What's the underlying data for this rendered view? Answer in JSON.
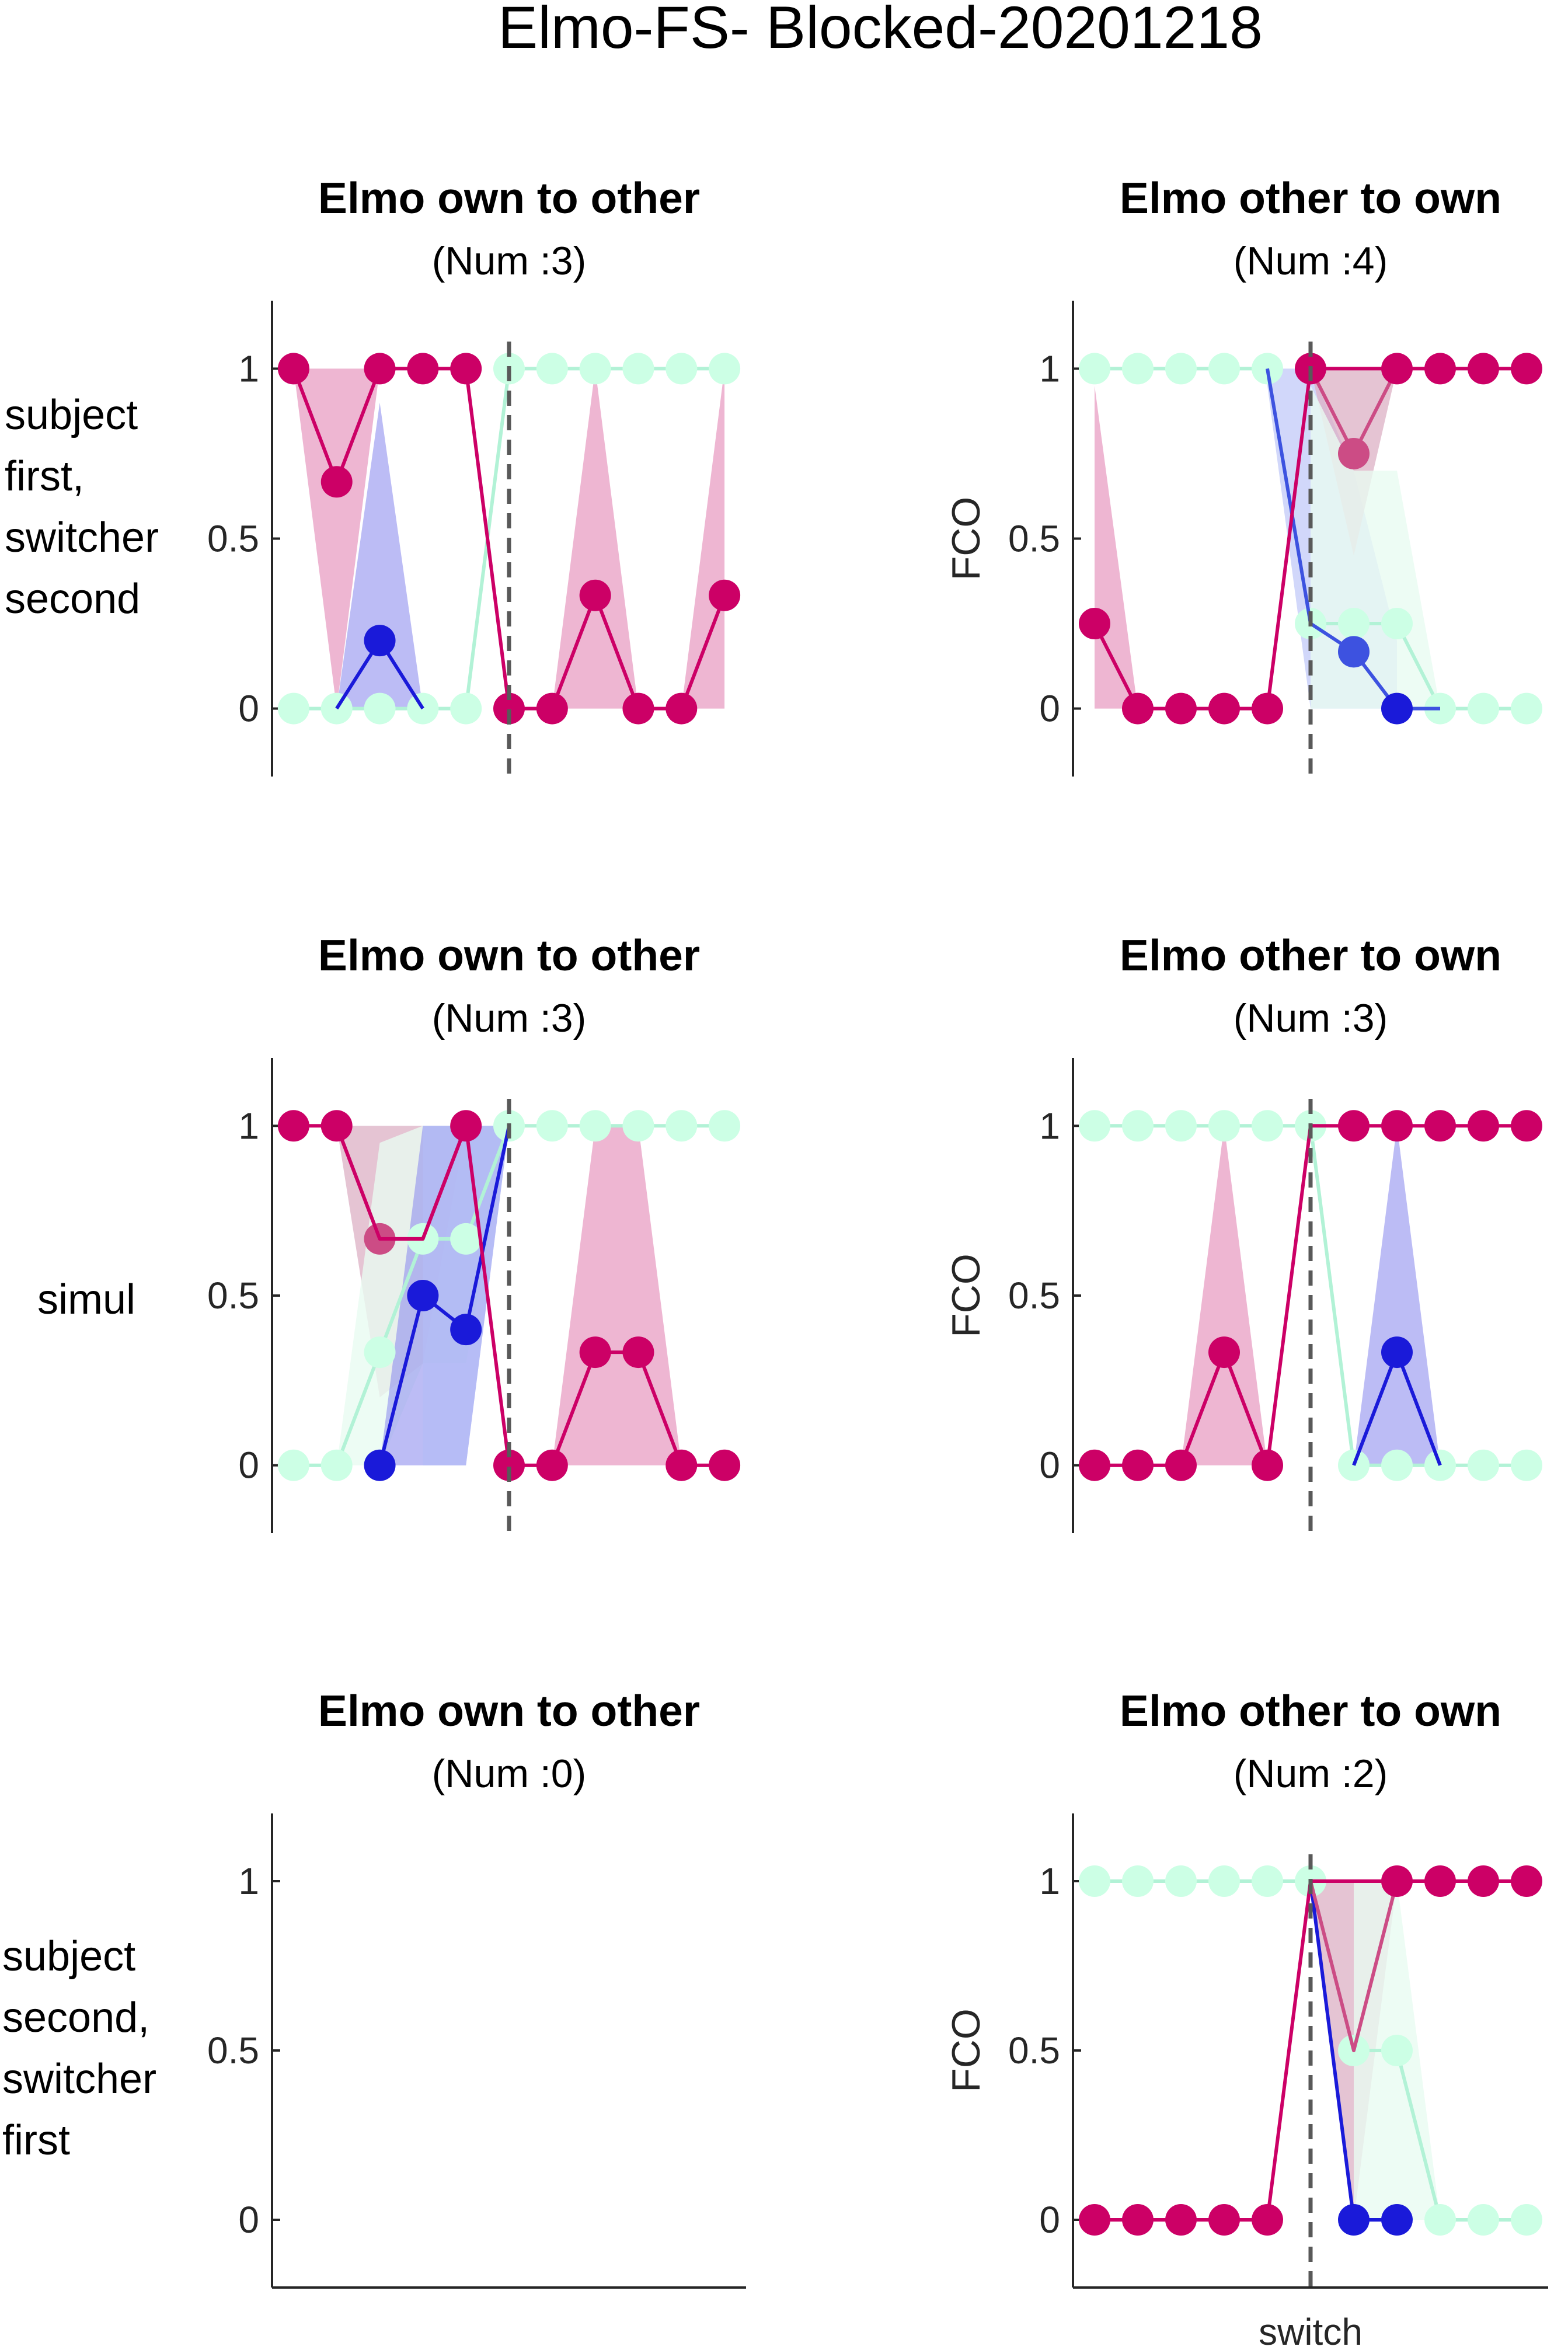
{
  "figure": {
    "title": "Elmo-FS- Blocked-20201218",
    "row_labels": [
      [
        "subject",
        "first,",
        "switcher",
        "second"
      ],
      [
        "simul"
      ],
      [
        "subject",
        "second,",
        "switcher",
        "first"
      ]
    ],
    "y_label": "FCO",
    "x_label": "switch",
    "y_ticks": [
      "0",
      "0.5",
      "1"
    ],
    "colors": {
      "magenta": "#cc0066",
      "magenta_fill": "#e58fba",
      "mauve": "#cc4c85",
      "mauve_fill": "#dcb0c4",
      "blue": "#1a1ad9",
      "blue_mid": "#3d52e0",
      "blue_fill": "#8f8fef",
      "blue_fill_light": "#b3bdf7",
      "mint": "#ccffe5",
      "mint_line": "#b2f2d6",
      "mint_fill": "#e8fbf1",
      "dashed": "#595959",
      "axis": "#262626"
    }
  },
  "chart_data": [
    {
      "type": "line",
      "title": "Elmo own to other",
      "subtitle": "(Num :3)",
      "ylabel": "",
      "ylim": [
        -0.2,
        1.2
      ],
      "x_range": [
        -5.5,
        5.5
      ],
      "switch_at": 0,
      "bands": [
        {
          "color": "magenta",
          "x": [
            -5,
            -4,
            -3
          ],
          "lo": [
            1,
            0,
            1
          ],
          "hi": [
            1,
            1,
            1
          ]
        },
        {
          "color": "blue",
          "x": [
            -4,
            -3,
            -2
          ],
          "lo": [
            0,
            0,
            0
          ],
          "hi": [
            0,
            0.9,
            0
          ]
        },
        {
          "color": "magenta",
          "x": [
            1,
            2,
            3
          ],
          "lo": [
            0,
            0,
            0
          ],
          "hi": [
            0,
            1,
            0
          ]
        },
        {
          "color": "magenta",
          "x": [
            4,
            5
          ],
          "lo": [
            0,
            0
          ],
          "hi": [
            0,
            1
          ]
        }
      ],
      "series": [
        {
          "color": "mint",
          "x": [
            -5,
            -4,
            -3,
            -2,
            -1,
            0,
            1,
            2,
            3,
            4,
            5
          ],
          "y": [
            0,
            0,
            0,
            0,
            0,
            1,
            1,
            1,
            1,
            1,
            1
          ]
        },
        {
          "color": "blue",
          "x": [
            -4,
            -3,
            -2
          ],
          "y": [
            0,
            0.2,
            0
          ],
          "markers": [
            -3
          ]
        },
        {
          "color": "magenta",
          "x": [
            -5,
            -4,
            -3,
            -2,
            -1,
            0,
            1,
            2,
            3,
            4,
            5
          ],
          "y": [
            1,
            0.667,
            1,
            1,
            1,
            0,
            0,
            0.333,
            0,
            0,
            0.333
          ]
        }
      ]
    },
    {
      "type": "line",
      "title": "Elmo other to own",
      "subtitle": "(Num :4)",
      "ylabel": "FCO",
      "ylim": [
        -0.2,
        1.2
      ],
      "x_range": [
        -5.5,
        5.5
      ],
      "switch_at": 0,
      "bands": [
        {
          "color": "magenta",
          "x": [
            -5,
            -4
          ],
          "lo": [
            0,
            0
          ],
          "hi": [
            0.95,
            0
          ]
        },
        {
          "color": "blue_fill_light",
          "x": [
            -1,
            0,
            1,
            2
          ],
          "lo": [
            0.95,
            0,
            0,
            0
          ],
          "hi": [
            1,
            1,
            0.7,
            0.2
          ]
        },
        {
          "color": "mauve",
          "x": [
            0,
            1,
            2
          ],
          "lo": [
            1,
            0.45,
            1
          ],
          "hi": [
            1,
            1,
            1
          ]
        },
        {
          "color": "mint",
          "x": [
            0,
            1,
            2,
            3
          ],
          "lo": [
            0,
            0,
            0,
            0
          ],
          "hi": [
            0.95,
            0.7,
            0.7,
            0
          ]
        }
      ],
      "series": [
        {
          "color": "mint",
          "x": [
            -5,
            -4,
            -3,
            -2,
            -1,
            0,
            1,
            2,
            3,
            4,
            5
          ],
          "y": [
            1,
            1,
            1,
            1,
            1,
            0.25,
            0.25,
            0.25,
            0,
            0,
            0
          ]
        },
        {
          "color": "blue_mid",
          "x": [
            -1,
            0,
            1,
            2,
            3
          ],
          "y": [
            1,
            0.25,
            0.167,
            0,
            0
          ],
          "markers": [
            1
          ]
        },
        {
          "color": "blue",
          "x": [
            2
          ],
          "y": [
            0
          ],
          "markers": [
            2
          ]
        },
        {
          "color": "mauve",
          "x": [
            0,
            1,
            2
          ],
          "y": [
            1,
            0.75,
            1
          ],
          "markers": [
            1
          ]
        },
        {
          "color": "magenta",
          "x": [
            -5,
            -4,
            -3,
            -2,
            -1,
            0,
            1,
            2,
            3,
            4,
            5
          ],
          "y": [
            0.25,
            0,
            0,
            0,
            0,
            1,
            1,
            1,
            1,
            1,
            1
          ],
          "skip_markers": [
            1
          ]
        }
      ]
    },
    {
      "type": "line",
      "title": "Elmo own to other",
      "subtitle": "(Num :3)",
      "ylabel": "",
      "ylim": [
        -0.2,
        1.2
      ],
      "x_range": [
        -5.5,
        5.5
      ],
      "switch_at": 0,
      "bands": [
        {
          "color": "mauve",
          "x": [
            -4,
            -3,
            -2,
            -1
          ],
          "lo": [
            1,
            0.2,
            0.3,
            1
          ],
          "hi": [
            1,
            1,
            1,
            1
          ]
        },
        {
          "color": "mint",
          "x": [
            -4,
            -3,
            -2,
            -1,
            0
          ],
          "lo": [
            0,
            0,
            0.3,
            0.3,
            1
          ],
          "hi": [
            0,
            0.95,
            1,
            1,
            1
          ]
        },
        {
          "color": "blue",
          "x": [
            -3,
            -2,
            -1,
            0
          ],
          "lo": [
            0,
            0,
            0,
            1
          ],
          "hi": [
            0,
            1,
            1,
            1
          ]
        },
        {
          "color": "blue_fill_light",
          "x": [
            -2,
            -1,
            0
          ],
          "lo": [
            0,
            0,
            1
          ],
          "hi": [
            1,
            1,
            1
          ]
        },
        {
          "color": "magenta",
          "x": [
            1,
            2,
            3,
            4
          ],
          "lo": [
            0,
            0,
            0,
            0
          ],
          "hi": [
            0,
            1,
            1,
            0
          ]
        }
      ],
      "series": [
        {
          "color": "mint",
          "x": [
            -5,
            -4,
            -3,
            -2,
            -1,
            0,
            1,
            2,
            3,
            4,
            5
          ],
          "y": [
            0,
            0,
            0.333,
            0.667,
            0.667,
            1,
            1,
            1,
            1,
            1,
            1
          ]
        },
        {
          "color": "blue",
          "x": [
            -3,
            -2,
            -1,
            0
          ],
          "y": [
            0,
            0.5,
            0.4,
            1
          ],
          "markers": [
            -3,
            -2,
            -1
          ]
        },
        {
          "color": "mauve",
          "x": [
            -4,
            -3,
            -2,
            -1
          ],
          "y": [
            1,
            0.667,
            0.667,
            1
          ],
          "markers": [
            -3
          ]
        },
        {
          "color": "magenta",
          "x": [
            -5,
            -4,
            -3,
            -2,
            -1,
            0,
            1,
            2,
            3,
            4,
            5
          ],
          "y": [
            1,
            1,
            0.667,
            0.667,
            1,
            0,
            0,
            0.333,
            0.333,
            0,
            0
          ],
          "skip_markers": [
            -3,
            -2
          ]
        }
      ]
    },
    {
      "type": "line",
      "title": "Elmo other to own",
      "subtitle": "(Num :3)",
      "ylabel": "FCO",
      "ylim": [
        -0.2,
        1.2
      ],
      "x_range": [
        -5.5,
        5.5
      ],
      "switch_at": 0,
      "bands": [
        {
          "color": "magenta",
          "x": [
            -3,
            -2,
            -1
          ],
          "lo": [
            0,
            0,
            0
          ],
          "hi": [
            0,
            1,
            0
          ]
        },
        {
          "color": "blue",
          "x": [
            1,
            2,
            3
          ],
          "lo": [
            0,
            0,
            0
          ],
          "hi": [
            0,
            1,
            0
          ]
        }
      ],
      "series": [
        {
          "color": "mint",
          "x": [
            -5,
            -4,
            -3,
            -2,
            -1,
            0,
            1,
            2,
            3,
            4,
            5
          ],
          "y": [
            1,
            1,
            1,
            1,
            1,
            1,
            0,
            0,
            0,
            0,
            0
          ]
        },
        {
          "color": "blue",
          "x": [
            1,
            2,
            3
          ],
          "y": [
            0,
            0.333,
            0
          ],
          "markers": [
            2
          ]
        },
        {
          "color": "magenta",
          "x": [
            -5,
            -4,
            -3,
            -2,
            -1,
            0,
            1,
            2,
            3,
            4,
            5
          ],
          "y": [
            0,
            0,
            0,
            0.333,
            0,
            1,
            1,
            1,
            1,
            1,
            1
          ],
          "skip_markers": [
            0
          ]
        }
      ]
    },
    {
      "type": "line",
      "title": "Elmo own to other",
      "subtitle": "(Num :0)",
      "ylabel": "",
      "ylim": [
        -0.2,
        1.2
      ],
      "x_range": [
        -5.5,
        5.5
      ],
      "switch_at": null,
      "bands": [],
      "series": []
    },
    {
      "type": "line",
      "title": "Elmo other to own",
      "subtitle": "(Num :2)",
      "ylabel": "FCO",
      "ylim": [
        -0.2,
        1.2
      ],
      "x_range": [
        -5.5,
        5.5
      ],
      "switch_at": 0,
      "show_xlabel": true,
      "bands": [
        {
          "color": "mauve",
          "x": [
            0,
            1,
            2
          ],
          "lo": [
            1,
            0,
            1
          ],
          "hi": [
            1,
            1,
            1
          ]
        },
        {
          "color": "mint",
          "x": [
            1,
            2,
            3
          ],
          "lo": [
            0,
            0,
            0
          ],
          "hi": [
            1,
            1,
            0
          ]
        }
      ],
      "series": [
        {
          "color": "mint",
          "x": [
            -5,
            -4,
            -3,
            -2,
            -1,
            0,
            1,
            2,
            3,
            4,
            5
          ],
          "y": [
            1,
            1,
            1,
            1,
            1,
            1,
            0.5,
            0.5,
            0,
            0,
            0
          ]
        },
        {
          "color": "blue",
          "x": [
            0,
            1,
            2
          ],
          "y": [
            1,
            0,
            0
          ],
          "markers": [
            1,
            2
          ]
        },
        {
          "color": "mauve",
          "x": [
            0,
            1,
            2
          ],
          "y": [
            1,
            0.5,
            1
          ],
          "markers": []
        },
        {
          "color": "magenta",
          "x": [
            -5,
            -4,
            -3,
            -2,
            -1,
            0,
            1,
            2,
            3,
            4,
            5
          ],
          "y": [
            0,
            0,
            0,
            0,
            0,
            1,
            1,
            1,
            1,
            1,
            1
          ],
          "skip_markers": [
            0,
            1
          ]
        }
      ]
    }
  ]
}
